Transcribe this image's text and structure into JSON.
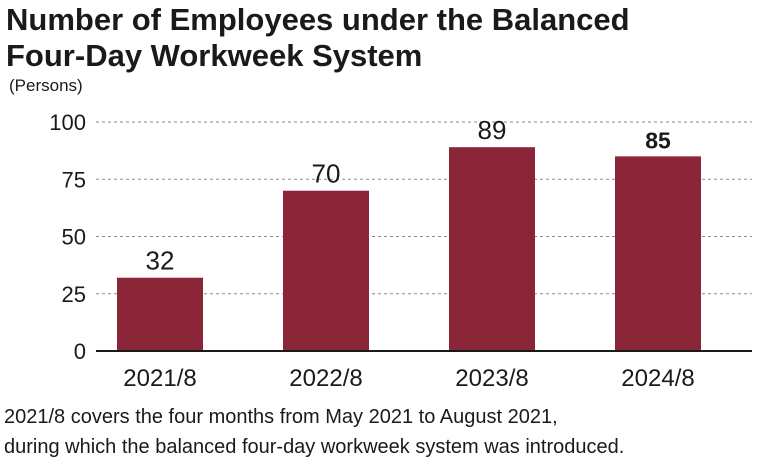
{
  "chart_data": {
    "type": "bar",
    "title_lines": [
      "Number of Employees under the Balanced",
      "Four-Day Workweek System"
    ],
    "ylabel": "(Persons)",
    "xlabel": "",
    "categories": [
      "2021/8",
      "2022/8",
      "2023/8",
      "2024/8"
    ],
    "values": [
      32,
      70,
      89,
      85
    ],
    "ylim": [
      0,
      100
    ],
    "yticks": [
      0,
      25,
      50,
      75,
      100
    ],
    "grid": true,
    "bar_color": "#8b2639",
    "bold_label_index": 3
  },
  "footnote": [
    "2021/8 covers the four months from May 2021 to August 2021,",
    "during which the balanced four-day workweek system was introduced."
  ]
}
